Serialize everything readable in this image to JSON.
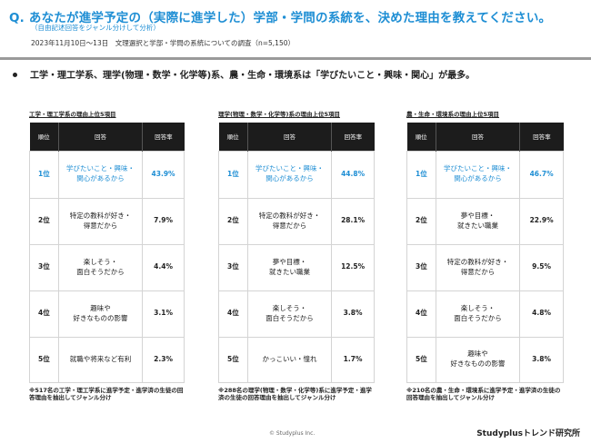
{
  "header": {
    "title": "Q. あなたが進学予定の（実際に進学した）学部・学問の系統を、決めた理由を教えてください。",
    "subtitle": "（自由記述回答をジャンル分けして分析）",
    "survey": "2023年11月10日～13日　文理選択と学部・学問の系統についての調査（n=5,150）"
  },
  "summary": "工学・理工学系、理学(物理・数学・化学等)系、農・生命・環境系は「学びたいこと・興味・関心」が最多。",
  "columns": {
    "rank": "順位",
    "answer": "回答",
    "rate": "回答率"
  },
  "colors": {
    "accent": "#1e8ed4",
    "header_bg": "#1c1c1c"
  },
  "tables": [
    {
      "title": "工学・理工学系の理由上位5項目",
      "rows": [
        {
          "rank": "1位",
          "answer": "学びたいこと・興味・\n関心があるから",
          "rate": "43.9%"
        },
        {
          "rank": "2位",
          "answer": "特定の教科が好き・\n得意だから",
          "rate": "7.9%"
        },
        {
          "rank": "3位",
          "answer": "楽しそう・\n面白そうだから",
          "rate": "4.4%"
        },
        {
          "rank": "4位",
          "answer": "趣味や\n好きなものの影響",
          "rate": "3.1%"
        },
        {
          "rank": "5位",
          "answer": "就職や将来など有利",
          "rate": "2.3%"
        }
      ],
      "note": "※517名の工学・理工学系に進学予定・進学済の生徒の回答理由を抽出してジャンル分け"
    },
    {
      "title": "理学(物理・数学・化学等)系の理由上位5項目",
      "rows": [
        {
          "rank": "1位",
          "answer": "学びたいこと・興味・\n関心があるから",
          "rate": "44.8%"
        },
        {
          "rank": "2位",
          "answer": "特定の教科が好き・\n得意だから",
          "rate": "28.1%"
        },
        {
          "rank": "3位",
          "answer": "夢や目標・\n就きたい職業",
          "rate": "12.5%"
        },
        {
          "rank": "4位",
          "answer": "楽しそう・\n面白そうだから",
          "rate": "3.8%"
        },
        {
          "rank": "5位",
          "answer": "かっこいい・憧れ",
          "rate": "1.7%"
        }
      ],
      "note": "※288名の理学(物理・数学・化学等)系に進学予定・進学済の生徒の回答理由を抽出してジャンル分け"
    },
    {
      "title": "農・生命・環境系の理由上位5項目",
      "rows": [
        {
          "rank": "1位",
          "answer": "学びたいこと・興味・\n関心があるから",
          "rate": "46.7%"
        },
        {
          "rank": "2位",
          "answer": "夢や目標・\n就きたい職業",
          "rate": "22.9%"
        },
        {
          "rank": "3位",
          "answer": "特定の教科が好き・\n得意だから",
          "rate": "9.5%"
        },
        {
          "rank": "4位",
          "answer": "楽しそう・\n面白そうだから",
          "rate": "4.8%"
        },
        {
          "rank": "5位",
          "answer": "趣味や\n好きなものの影響",
          "rate": "3.8%"
        }
      ],
      "note": "※210名の農・生命・環境系に進学予定・進学済の生徒の回答理由を抽出してジャンル分け"
    }
  ],
  "footer": {
    "copyright": "© Studyplus Inc.",
    "brand": "Studyplusトレンド研究所"
  }
}
